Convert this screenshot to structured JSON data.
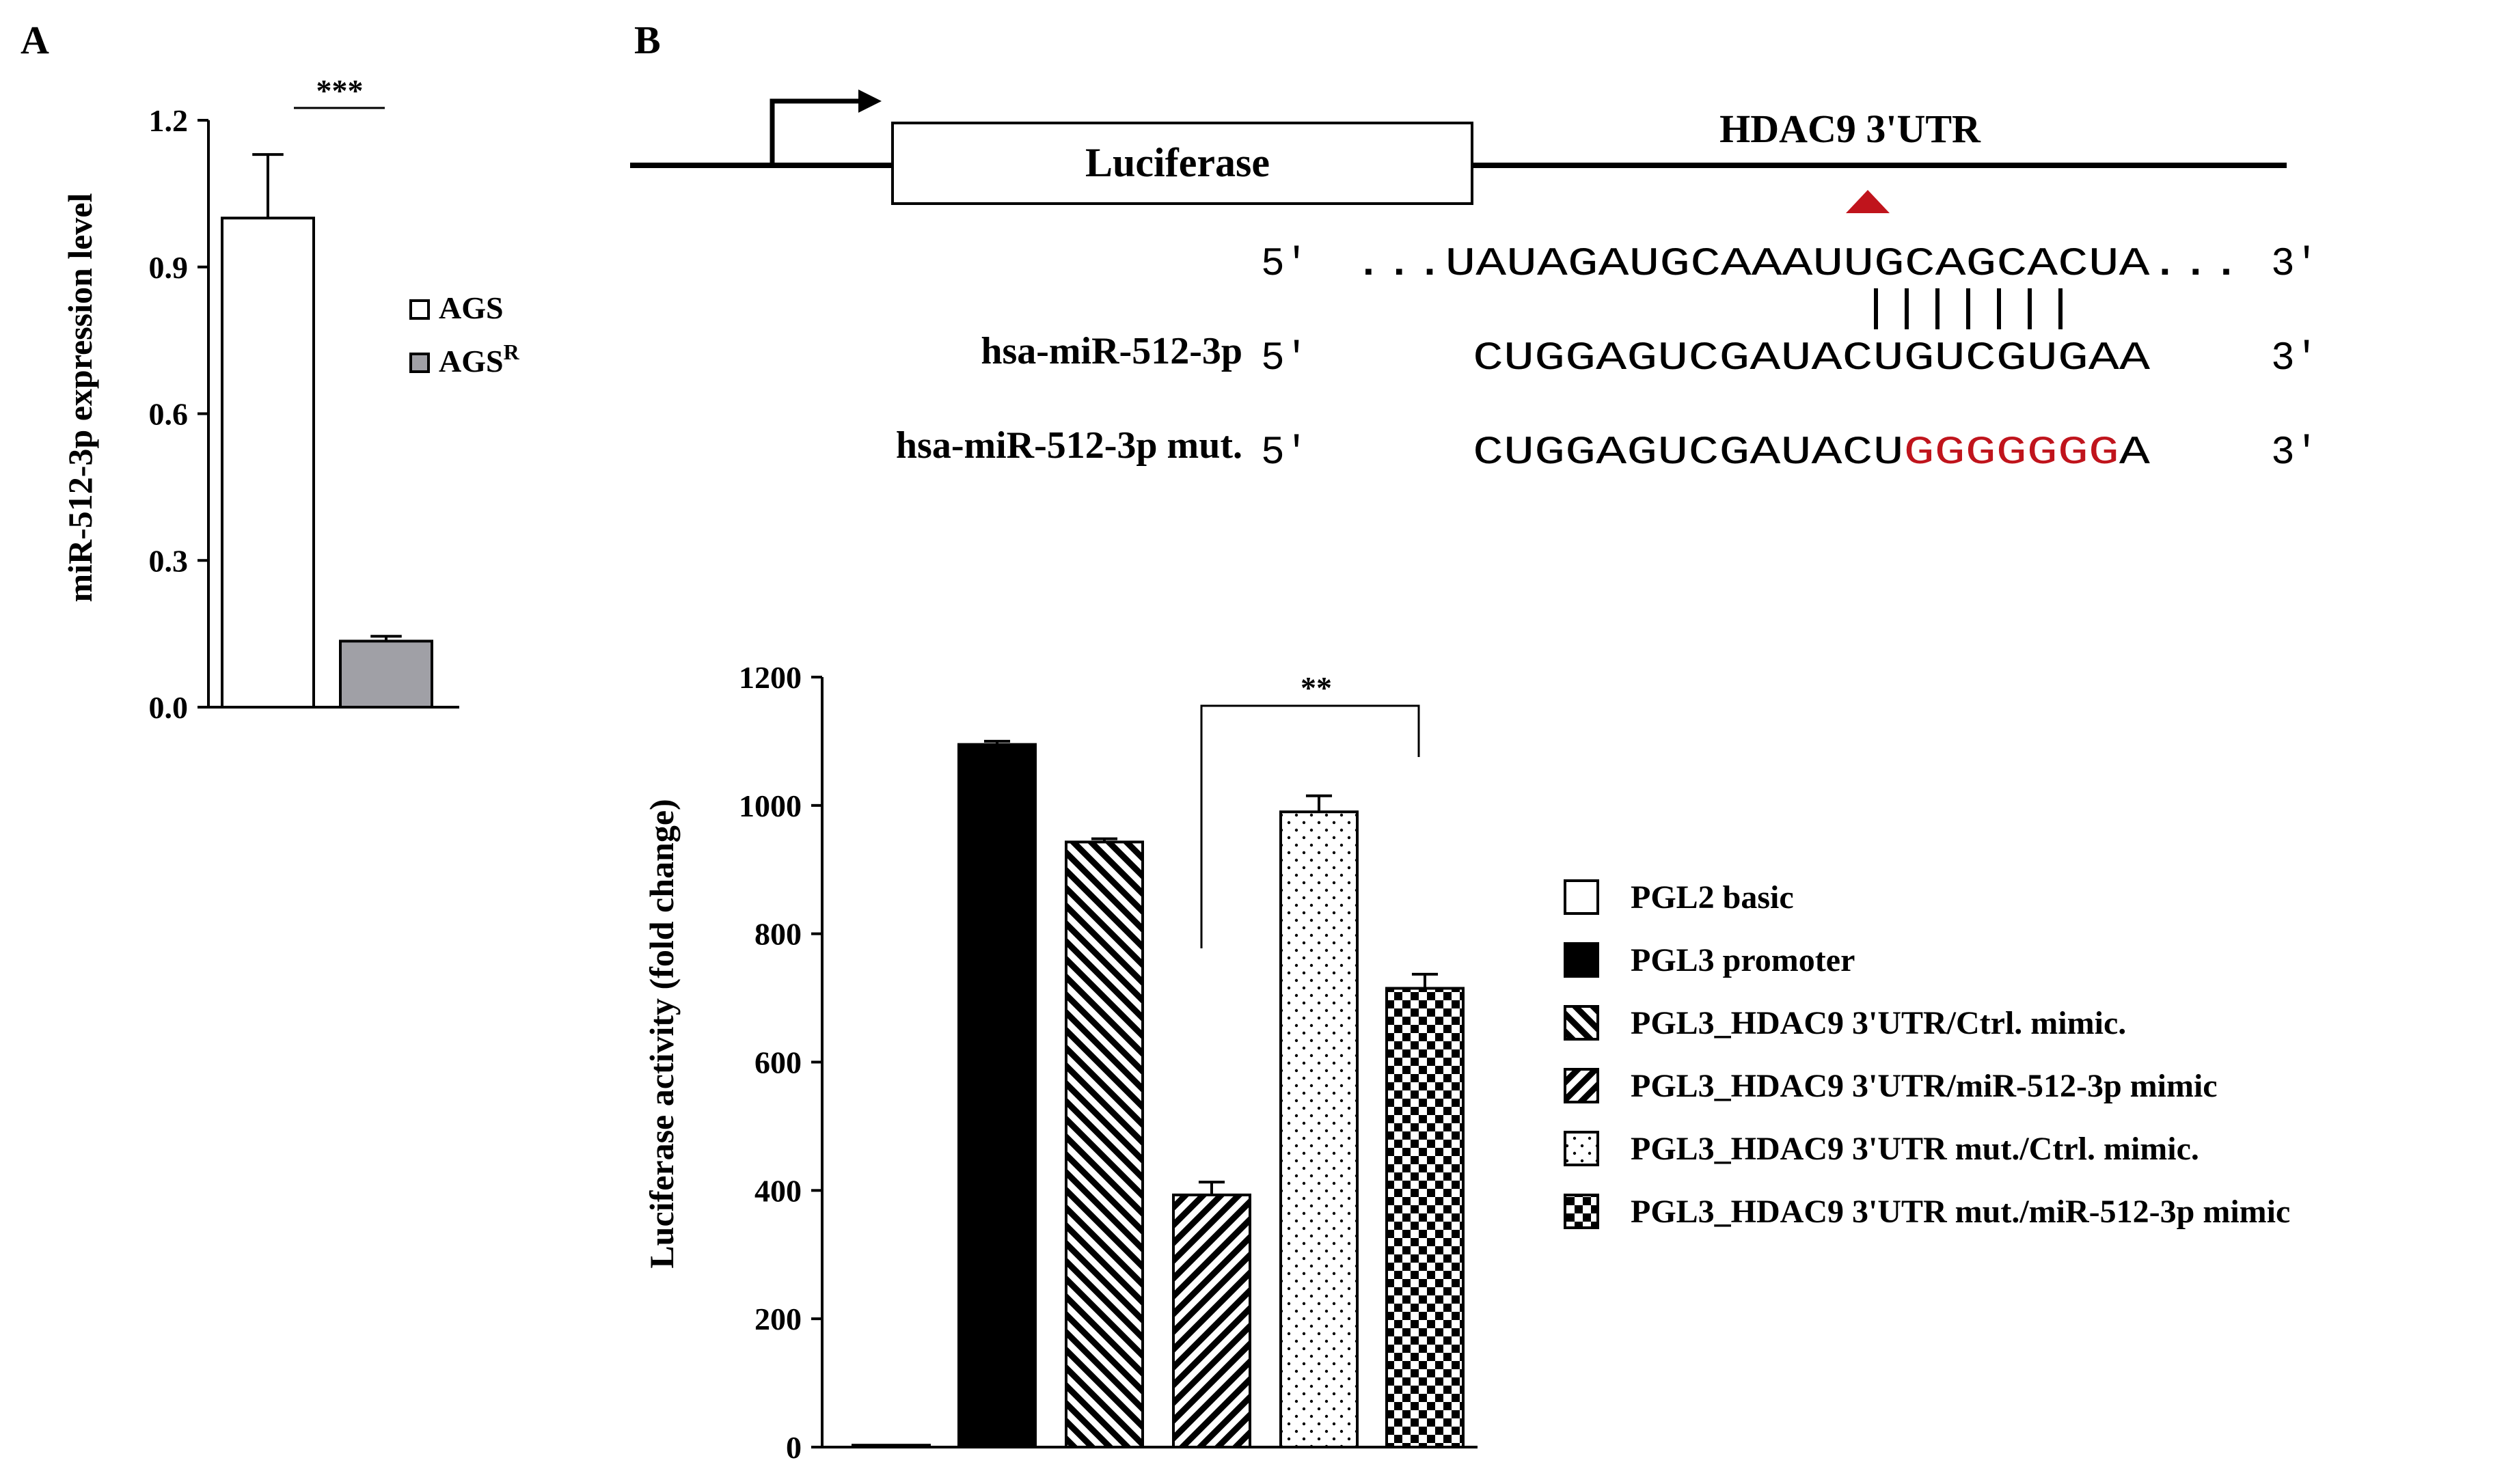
{
  "panel_labels": {
    "a": "A",
    "b": "B"
  },
  "colors": {
    "accent_red": "#c0141c",
    "gray_fill": "#a0a0a6",
    "black": "#000000"
  },
  "schematic": {
    "luciferase_label": "Luciferase",
    "utr_label": "HDAC9 3'UTR",
    "prime5": "5'",
    "prime3": "3'",
    "target_seq": "...UAUAGAUGCAAAUUGCAGCACUA...",
    "mirna_name": "hsa-miR-512-3p",
    "mirna_seq": "CUGGAGUCGAUACUGUCGUGAA",
    "mut_name": "hsa-miR-512-3p mut.",
    "mut_seq_prefix": "CUGGAGUCGAUACU",
    "mut_seq_mutated": "GGGGGGG",
    "mut_seq_suffix": "A",
    "pairing_lines": 7
  },
  "chart_data": [
    {
      "type": "bar",
      "panel": "A",
      "categories": [
        "AGS",
        "AGS^R"
      ],
      "values": [
        1.0,
        0.135
      ],
      "errors": [
        0.13,
        0.01
      ],
      "fills": [
        "white",
        "gray"
      ],
      "ylabel": "miR-512-3p expression level",
      "ylim": [
        0,
        1.2
      ],
      "yticks": [
        "0.0",
        "0.3",
        "0.6",
        "0.9",
        "1.2"
      ],
      "significance": "***",
      "legend": [
        {
          "label": "AGS",
          "sup": "",
          "fill": "white"
        },
        {
          "label": "AGS",
          "sup": "R",
          "fill": "gray"
        }
      ],
      "legend_position": "right"
    },
    {
      "type": "bar",
      "panel": "B",
      "categories": [
        "PGL2 basic",
        "PGL3 promoter",
        "PGL3_HDAC9 3'UTR/Ctrl.  mimic.",
        "PGL3_HDAC9 3'UTR/miR-512-3p mimic",
        "PGL3_HDAC9 3'UTR mut./Ctrl.  mimic.",
        "PGL3_HDAC9 3'UTR mut./miR-512-3p mimic"
      ],
      "values": [
        3,
        1095,
        943,
        393,
        990,
        715
      ],
      "errors": [
        0,
        5,
        5,
        20,
        25,
        22
      ],
      "patterns": [
        "white",
        "black",
        "backslash",
        "slash",
        "dots",
        "checker"
      ],
      "ylabel": "Luciferase activity (fold change)",
      "ylim": [
        0,
        1200
      ],
      "yticks": [
        "0",
        "200",
        "400",
        "600",
        "800",
        "1000",
        "1200"
      ],
      "significance": "**",
      "legend_position": "right"
    }
  ]
}
